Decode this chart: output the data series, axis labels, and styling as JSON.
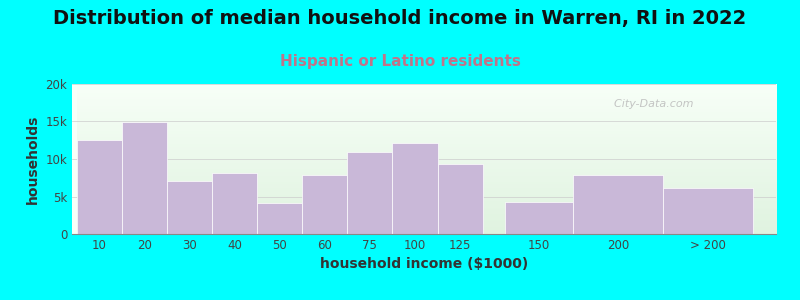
{
  "title": "Distribution of median household income in Warren, RI in 2022",
  "subtitle": "Hispanic or Latino residents",
  "xlabel": "household income ($1000)",
  "ylabel": "households",
  "background_outer": "#00FFFF",
  "background_inner_top": "#dff0df",
  "background_inner_bottom": "#f8fff8",
  "bar_color": "#c9b8d8",
  "bar_edge_color": "#c9b8d8",
  "categories": [
    "10",
    "20",
    "30",
    "40",
    "50",
    "60",
    "75",
    "100",
    "125",
    "150",
    "200",
    "> 200"
  ],
  "values": [
    12600,
    14900,
    7100,
    8100,
    4100,
    7900,
    11000,
    12200,
    9400,
    4300,
    7900,
    6200
  ],
  "bar_lefts": [
    0,
    1,
    2,
    3,
    4,
    5,
    6,
    7,
    8,
    9.5,
    11,
    13
  ],
  "bar_widths": [
    1,
    1,
    1,
    1,
    1,
    1,
    1,
    1,
    1,
    1.5,
    2,
    2
  ],
  "ylim": [
    0,
    20000
  ],
  "yticks": [
    0,
    5000,
    10000,
    15000,
    20000
  ],
  "ytick_labels": [
    "0",
    "5k",
    "10k",
    "15k",
    "20k"
  ],
  "watermark": "  City-Data.com",
  "title_fontsize": 14,
  "subtitle_fontsize": 11,
  "subtitle_color": "#c0748a",
  "axis_label_fontsize": 10,
  "tick_fontsize": 8.5
}
